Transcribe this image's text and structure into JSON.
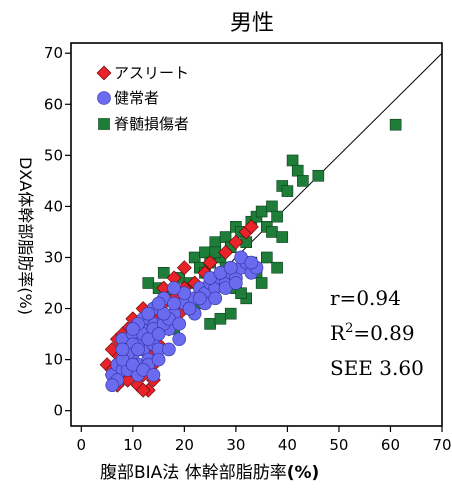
{
  "chart_data": {
    "type": "scatter",
    "title": "男性",
    "xlabel": "腹部BIA法 体幹部脂肪率",
    "xlabel_unit": "(%)",
    "ylabel": "DXA体幹部脂肪率(%)",
    "xlim": [
      -2,
      70
    ],
    "ylim": [
      -3,
      72
    ],
    "xticks": [
      "0",
      "10",
      "20",
      "30",
      "40",
      "50",
      "60",
      "70"
    ],
    "yticks": [
      "0",
      "10",
      "20",
      "30",
      "40",
      "50",
      "60",
      "70"
    ],
    "grid": false,
    "legend_position": "top-left",
    "regression_line": {
      "x": [
        5,
        70
      ],
      "y": [
        5,
        70
      ]
    },
    "stats": {
      "r": "r=0.94",
      "r2_prefix": "R",
      "r2_sup": "2",
      "r2_value": "=0.89",
      "see": "SEE 3.60"
    },
    "series": [
      {
        "name": "アスリート",
        "marker": "diamond",
        "color": "#e8232a",
        "x": [
          5,
          6,
          7,
          8,
          8,
          9,
          10,
          10,
          11,
          12,
          12,
          13,
          14,
          6,
          7,
          9,
          11,
          13,
          8,
          10,
          12,
          14,
          15,
          16,
          17,
          18,
          19,
          20,
          21,
          22,
          23,
          24,
          25,
          28,
          30,
          32,
          33,
          15,
          16,
          18,
          20,
          9,
          11,
          13,
          7,
          6,
          8,
          10,
          12,
          14
        ],
        "y": [
          9,
          7,
          11,
          8,
          13,
          6,
          10,
          14,
          5,
          12,
          7,
          4,
          9,
          12,
          5,
          16,
          15,
          11,
          10,
          18,
          20,
          14,
          18,
          21,
          16,
          22,
          19,
          24,
          20,
          25,
          23,
          27,
          29,
          31,
          33,
          35,
          36,
          13,
          24,
          26,
          28,
          6,
          8,
          19,
          14,
          8,
          15,
          12,
          4,
          6
        ]
      },
      {
        "name": "健常者",
        "marker": "circle",
        "color": "#6b6bf0",
        "x": [
          6,
          7,
          8,
          9,
          10,
          11,
          12,
          13,
          14,
          15,
          8,
          9,
          10,
          11,
          12,
          13,
          14,
          16,
          17,
          18,
          7,
          9,
          11,
          13,
          15,
          17,
          19,
          20,
          21,
          22,
          23,
          24,
          25,
          26,
          27,
          28,
          29,
          30,
          31,
          32,
          33,
          34,
          12,
          14,
          16,
          18,
          20,
          22,
          24,
          26,
          28,
          30,
          10,
          12,
          14,
          16,
          9,
          11,
          13,
          15,
          17,
          19,
          21,
          23,
          25,
          27,
          29,
          31,
          33,
          8,
          10,
          12,
          14,
          16,
          18,
          11,
          13,
          15,
          6,
          8,
          10
        ],
        "y": [
          7,
          9,
          8,
          10,
          11,
          9,
          12,
          10,
          13,
          12,
          14,
          12,
          15,
          13,
          16,
          14,
          17,
          18,
          16,
          19,
          6,
          8,
          7,
          9,
          10,
          12,
          14,
          21,
          20,
          22,
          24,
          23,
          25,
          24,
          26,
          25,
          27,
          26,
          28,
          29,
          27,
          28,
          18,
          20,
          22,
          21,
          23,
          19,
          21,
          22,
          24,
          25,
          13,
          15,
          16,
          17,
          11,
          12,
          14,
          15,
          18,
          17,
          20,
          22,
          26,
          27,
          28,
          30,
          29,
          10,
          9,
          8,
          7,
          19,
          24,
          17,
          19,
          21,
          5,
          12,
          16
        ]
      },
      {
        "name": "脊髄損傷者",
        "marker": "square",
        "color": "#1f7d3a",
        "x": [
          13,
          15,
          17,
          19,
          21,
          22,
          23,
          24,
          25,
          26,
          27,
          28,
          29,
          30,
          31,
          32,
          33,
          34,
          35,
          36,
          37,
          38,
          39,
          40,
          41,
          42,
          43,
          46,
          61,
          30,
          32,
          34,
          36,
          38,
          20,
          22,
          24,
          26,
          28,
          31,
          33,
          35,
          37,
          39,
          18,
          16,
          25,
          27,
          29,
          23
        ],
        "y": [
          25,
          24,
          23,
          26,
          25,
          30,
          28,
          31,
          29,
          33,
          30,
          34,
          32,
          36,
          35,
          33,
          37,
          38,
          39,
          36,
          40,
          38,
          44,
          43,
          49,
          47,
          45,
          46,
          56,
          24,
          22,
          27,
          30,
          28,
          20,
          22,
          27,
          31,
          28,
          23,
          29,
          25,
          35,
          34,
          16,
          27,
          17,
          18,
          19,
          21
        ]
      }
    ]
  }
}
